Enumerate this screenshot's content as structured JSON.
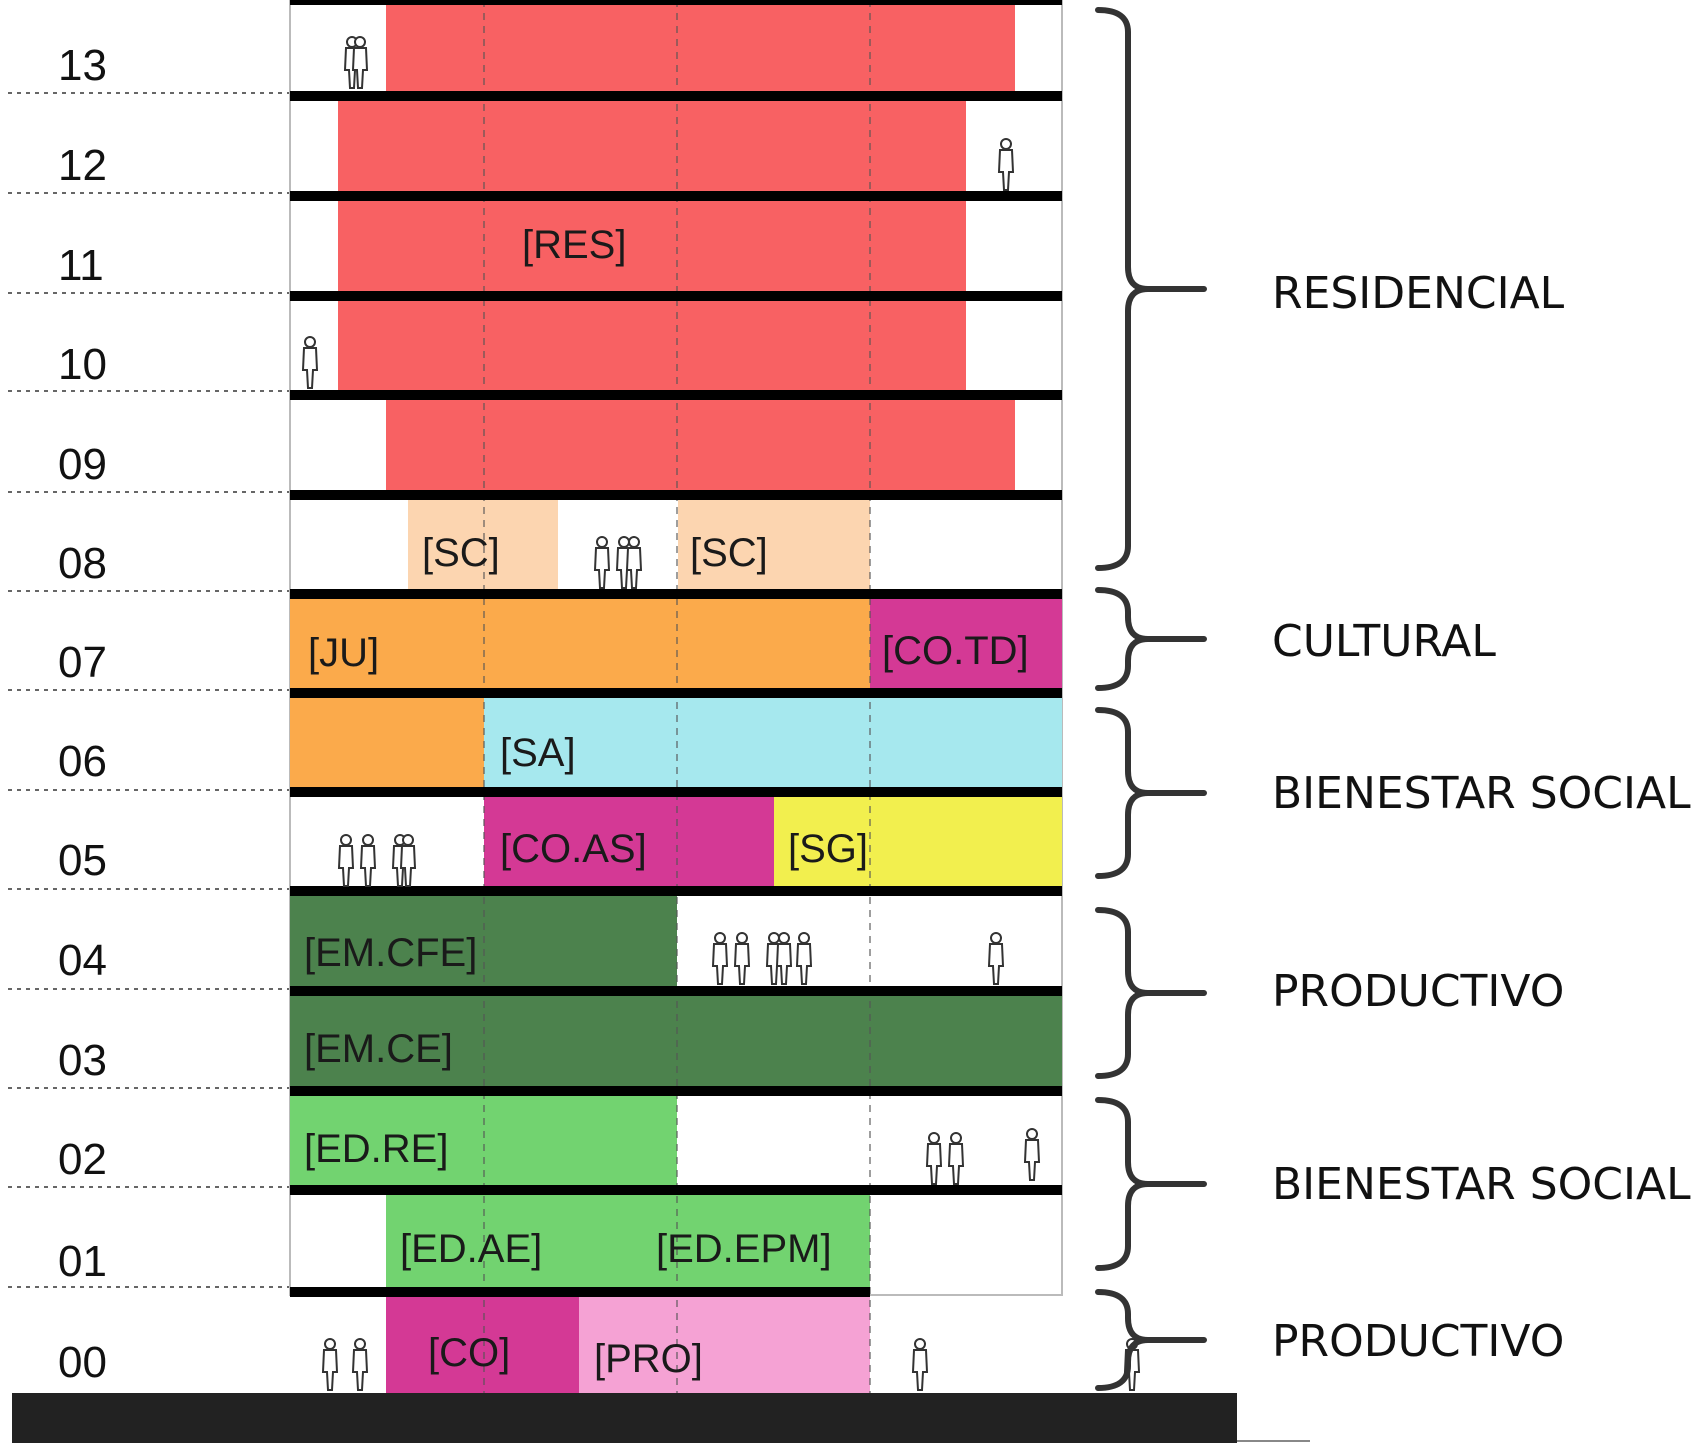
{
  "colors": {
    "residential": "#f86163",
    "community_services": "#fcd5b0",
    "youth": "#fbaa4b",
    "commerce": "#d43995",
    "health": "#a6e8ee",
    "general_services": "#f2ef4e",
    "employment": "#4c824d",
    "education": "#72d370",
    "production": "#f5a2d4",
    "slab": "#000000",
    "ground": "#222222"
  },
  "levels": [
    "00",
    "01",
    "02",
    "03",
    "04",
    "05",
    "06",
    "07",
    "08",
    "09",
    "10",
    "11",
    "12",
    "13"
  ],
  "blocks": [
    {
      "id": "res-13",
      "level": "13",
      "label": "",
      "color": "residential"
    },
    {
      "id": "res-12",
      "level": "12",
      "label": "",
      "color": "residential"
    },
    {
      "id": "res-11",
      "level": "11",
      "label": "[RES]",
      "color": "residential"
    },
    {
      "id": "res-10",
      "level": "10",
      "label": "",
      "color": "residential"
    },
    {
      "id": "res-09",
      "level": "09",
      "label": "",
      "color": "residential"
    },
    {
      "id": "sc-a",
      "level": "08",
      "label": "[SC]",
      "color": "community_services"
    },
    {
      "id": "sc-b",
      "level": "08",
      "label": "[SC]",
      "color": "community_services"
    },
    {
      "id": "ju",
      "level": "07",
      "label": "[JU]",
      "color": "youth"
    },
    {
      "id": "co-td",
      "level": "07",
      "label": "[CO.TD]",
      "color": "commerce"
    },
    {
      "id": "ju-06",
      "level": "06",
      "label": "",
      "color": "youth"
    },
    {
      "id": "sa",
      "level": "06",
      "label": "[SA]",
      "color": "health"
    },
    {
      "id": "co-as",
      "level": "05",
      "label": "[CO.AS]",
      "color": "commerce"
    },
    {
      "id": "sg",
      "level": "05",
      "label": "[SG]",
      "color": "general_services"
    },
    {
      "id": "em-cfe",
      "level": "04",
      "label": "[EM.CFE]",
      "color": "employment"
    },
    {
      "id": "em-ce",
      "level": "03",
      "label": "[EM.CE]",
      "color": "employment"
    },
    {
      "id": "ed-re",
      "level": "02",
      "label": "[ED.RE]",
      "color": "education"
    },
    {
      "id": "ed-ae",
      "level": "01",
      "label": "[ED.AE]",
      "color": "education"
    },
    {
      "id": "ed-epm",
      "level": "01",
      "label": "[ED.EPM]",
      "color": "education"
    },
    {
      "id": "co",
      "level": "00",
      "label": "[CO]",
      "color": "commerce"
    },
    {
      "id": "pro",
      "level": "00",
      "label": "[PRO]",
      "color": "production"
    }
  ],
  "groups": [
    {
      "id": "residencial",
      "label": "RESIDENCIAL",
      "levels": [
        "08",
        "13"
      ]
    },
    {
      "id": "cultural",
      "label": "CULTURAL",
      "levels": [
        "07",
        "07"
      ]
    },
    {
      "id": "bienestar-upper",
      "label": "BIENESTAR SOCIAL",
      "levels": [
        "05",
        "06"
      ]
    },
    {
      "id": "productivo-upper",
      "label": "PRODUCTIVO",
      "levels": [
        "03",
        "04"
      ]
    },
    {
      "id": "bienestar-lower",
      "label": "BIENESTAR SOCIAL",
      "levels": [
        "01",
        "02"
      ]
    },
    {
      "id": "productivo-lower",
      "label": "PRODUCTIVO",
      "levels": [
        "00",
        "00"
      ]
    }
  ],
  "people": [
    {
      "level": "13",
      "count": 2
    },
    {
      "level": "12",
      "count": 1
    },
    {
      "level": "10",
      "count": 1
    },
    {
      "level": "08",
      "count": 3
    },
    {
      "level": "05",
      "count": 4
    },
    {
      "level": "04",
      "count": 6
    },
    {
      "level": "02",
      "count": 3
    },
    {
      "level": "00",
      "count": 4
    }
  ]
}
